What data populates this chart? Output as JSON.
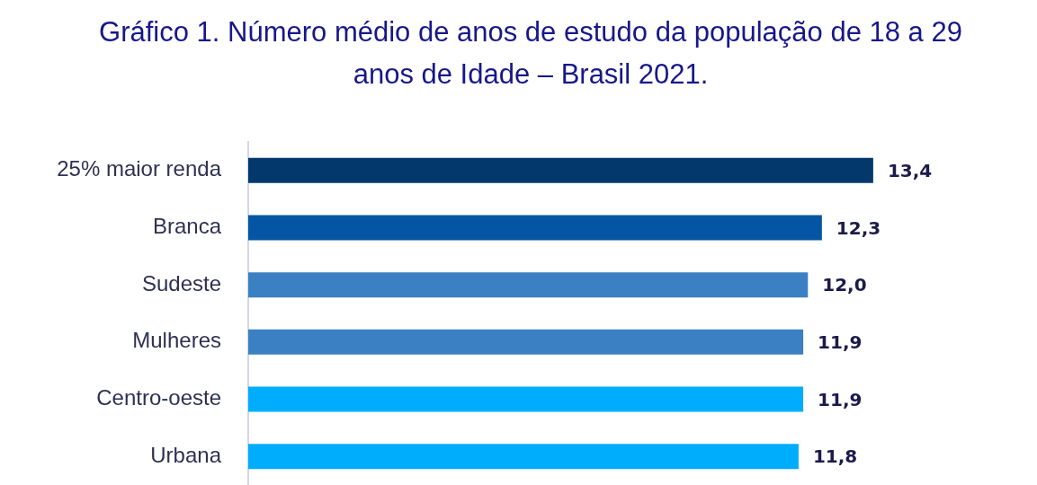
{
  "chart_data": {
    "type": "bar",
    "orientation": "horizontal",
    "title": "Gráfico 1. Número médio de anos de estudo da população de 18 a 29 anos de Idade – Brasil 2021.",
    "categories": [
      "25% maior renda",
      "Branca",
      "Sudeste",
      "Mulheres",
      "Centro-oeste",
      "Urbana"
    ],
    "values": [
      13.4,
      12.3,
      12.0,
      11.9,
      11.9,
      11.8
    ],
    "colors": [
      "#03386c",
      "#0456a4",
      "#3b80c2",
      "#3b80c2",
      "#00adfd",
      "#00adfd"
    ],
    "value_labels": [
      "13,4",
      "12,3",
      "12,0",
      "11,9",
      "11,9",
      "11,8"
    ],
    "tick_labels": "y"
  }
}
